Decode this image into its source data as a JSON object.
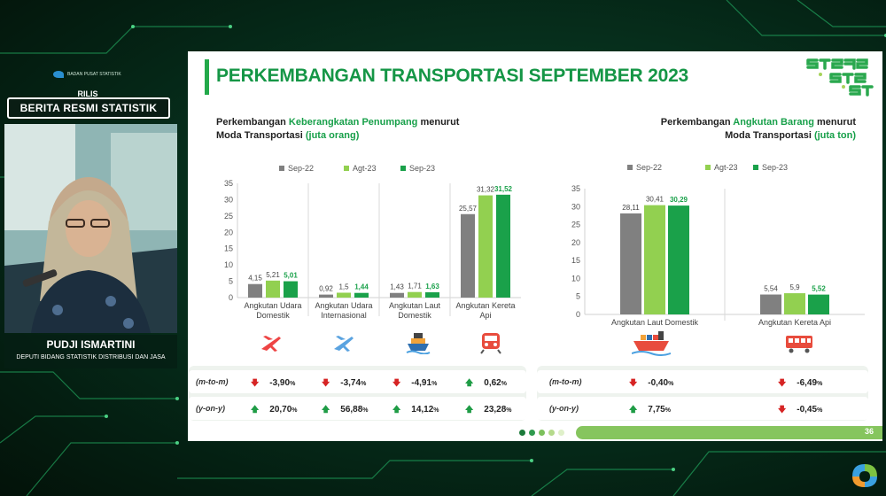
{
  "left_panel": {
    "logo_text": "BADAN PUSAT STATISTIK",
    "rilis": "RILIS",
    "banner": "BERITA RESMI STATISTIK",
    "speaker_name": "PUDJI ISMARTINI",
    "speaker_title": "DEPUTI BIDANG STATISTIK DISTRIBUSI DAN JASA"
  },
  "slide": {
    "title": "PERKEMBANGAN TRANSPORTASI  SEPTEMBER 2023",
    "page_number": "36",
    "left_header": {
      "pre": "Perkembangan ",
      "highlight": "Keberangkatan Penumpang",
      "post": " menurut",
      "line2_pre": "Moda Transportasi ",
      "line2_unit": "(juta orang)"
    },
    "right_header": {
      "pre": "Perkembangan ",
      "highlight": "Angkutan Barang",
      "post": " menurut",
      "line2_pre": "Moda Transportasi ",
      "line2_unit": "(juta ton)"
    }
  },
  "colors": {
    "sep22": "#808080",
    "agt23": "#92d050",
    "sep23": "#1aa14a",
    "down": "#d62424",
    "up": "#1f9c46",
    "title": "#159646"
  },
  "chart_data": [
    {
      "type": "bar",
      "ylim": [
        0,
        35
      ],
      "yticks": [
        "0",
        "5",
        "10",
        "15",
        "20",
        "25",
        "30",
        "35"
      ],
      "categories": [
        "Angkutan Udara|Domestik",
        "Angkutan Udara|Internasional",
        "Angkutan Laut|Domestik",
        "Angkutan Kereta|Api"
      ],
      "series": [
        {
          "name": "Sep-22",
          "values": [
            4.15,
            0.92,
            1.43,
            25.57
          ],
          "labels": [
            "4,15",
            "0,92",
            "1,43",
            "25,57"
          ]
        },
        {
          "name": "Agt-23",
          "values": [
            5.21,
            1.5,
            1.71,
            31.32
          ],
          "labels": [
            "5,21",
            "1,5",
            "1,71",
            "31,32"
          ]
        },
        {
          "name": "Sep-23",
          "values": [
            5.01,
            1.44,
            1.63,
            31.52
          ],
          "labels": [
            "5,01",
            "1,44",
            "1,63",
            "31,52"
          ]
        }
      ],
      "icons": [
        "plane-domestic-icon",
        "plane-international-icon",
        "ship-icon",
        "train-icon"
      ]
    },
    {
      "type": "bar",
      "ylim": [
        0,
        35
      ],
      "yticks": [
        "0",
        "5",
        "10",
        "15",
        "20",
        "25",
        "30",
        "35"
      ],
      "categories": [
        "Angkutan Laut Domestik",
        "Angkutan Kereta Api"
      ],
      "series": [
        {
          "name": "Sep-22",
          "values": [
            28.11,
            5.54
          ],
          "labels": [
            "28,11",
            "5,54"
          ]
        },
        {
          "name": "Agt-23",
          "values": [
            30.41,
            5.9
          ],
          "labels": [
            "30,41",
            "5,9"
          ]
        },
        {
          "name": "Sep-23",
          "values": [
            30.29,
            5.52
          ],
          "labels": [
            "30,29",
            "5,52"
          ]
        }
      ],
      "icons": [
        "cargo-ship-icon",
        "freight-train-icon"
      ]
    }
  ],
  "changes_left": {
    "rows": [
      {
        "label": "(m-to-m)",
        "values": [
          {
            "dir": "down",
            "num": "-3,90",
            "pct": "%"
          },
          {
            "dir": "down",
            "num": "-3,74",
            "pct": "%"
          },
          {
            "dir": "down",
            "num": "-4,91",
            "pct": "%"
          },
          {
            "dir": "up",
            "num": "0,62",
            "pct": "%"
          }
        ]
      },
      {
        "label": "(y-on-y)",
        "values": [
          {
            "dir": "up",
            "num": "20,70",
            "pct": "%"
          },
          {
            "dir": "up",
            "num": "56,88",
            "pct": "%"
          },
          {
            "dir": "up",
            "num": "14,12",
            "pct": "%"
          },
          {
            "dir": "up",
            "num": "23,28",
            "pct": "%"
          }
        ]
      }
    ]
  },
  "changes_right": {
    "rows": [
      {
        "label": "(m-to-m)",
        "values": [
          {
            "dir": "down",
            "num": "-0,40",
            "pct": "%"
          },
          {
            "dir": "down",
            "num": "-6,49",
            "pct": "%"
          }
        ]
      },
      {
        "label": "(y-on-y)",
        "values": [
          {
            "dir": "up",
            "num": "7,75",
            "pct": "%"
          },
          {
            "dir": "down",
            "num": "-0,45",
            "pct": "%"
          }
        ]
      }
    ]
  }
}
